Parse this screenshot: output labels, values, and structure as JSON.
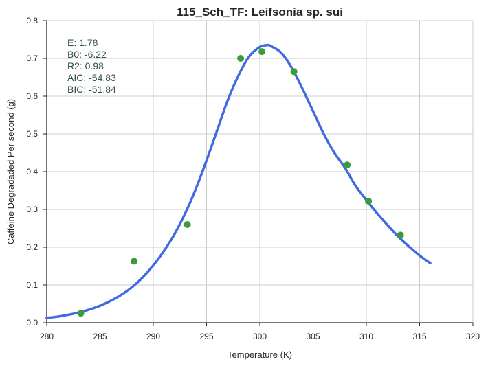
{
  "chart_data": {
    "type": "scatter",
    "title": "115_Sch_TF: Leifsonia sp. sui",
    "xlabel": "Temperature (K)",
    "ylabel": "Caffeine Degradaded Per second (g)",
    "xlim": [
      280,
      320
    ],
    "ylim": [
      0.0,
      0.8
    ],
    "xticks": [
      "280",
      "285",
      "290",
      "295",
      "300",
      "305",
      "310",
      "315",
      "320"
    ],
    "yticks": [
      "0.0",
      "0.1",
      "0.2",
      "0.3",
      "0.4",
      "0.5",
      "0.6",
      "0.7",
      "0.8"
    ],
    "grid": true,
    "points": {
      "color": "#3a9b3a",
      "x": [
        283.2,
        288.2,
        293.2,
        298.2,
        300.2,
        303.2,
        308.2,
        310.2,
        313.2
      ],
      "y": [
        0.025,
        0.163,
        0.26,
        0.7,
        0.718,
        0.665,
        0.418,
        0.322,
        0.232
      ]
    },
    "fit_curve": {
      "color": "#4169e1",
      "x": [
        280.0,
        281.0,
        282.0,
        283.0,
        284.0,
        285.0,
        286.0,
        287.0,
        288.0,
        289.0,
        290.0,
        291.0,
        292.0,
        293.0,
        294.0,
        295.0,
        296.0,
        297.0,
        298.0,
        299.0,
        300.0,
        300.7,
        301.0,
        302.0,
        303.0,
        304.0,
        305.0,
        306.0,
        307.0,
        308.0,
        309.0,
        310.0,
        311.0,
        312.0,
        313.0,
        314.0,
        315.0,
        316.0
      ],
      "y": [
        0.013,
        0.016,
        0.021,
        0.027,
        0.035,
        0.045,
        0.058,
        0.074,
        0.094,
        0.12,
        0.152,
        0.19,
        0.235,
        0.29,
        0.355,
        0.43,
        0.51,
        0.59,
        0.655,
        0.705,
        0.73,
        0.735,
        0.733,
        0.715,
        0.675,
        0.62,
        0.56,
        0.5,
        0.45,
        0.41,
        0.362,
        0.325,
        0.29,
        0.258,
        0.228,
        0.202,
        0.178,
        0.158
      ]
    },
    "annotation": {
      "lines": [
        "E:  1.78",
        "B0:  -6.22",
        "R2:  0.98",
        "AIC: -54.83",
        "BIC: -51.84"
      ]
    }
  }
}
